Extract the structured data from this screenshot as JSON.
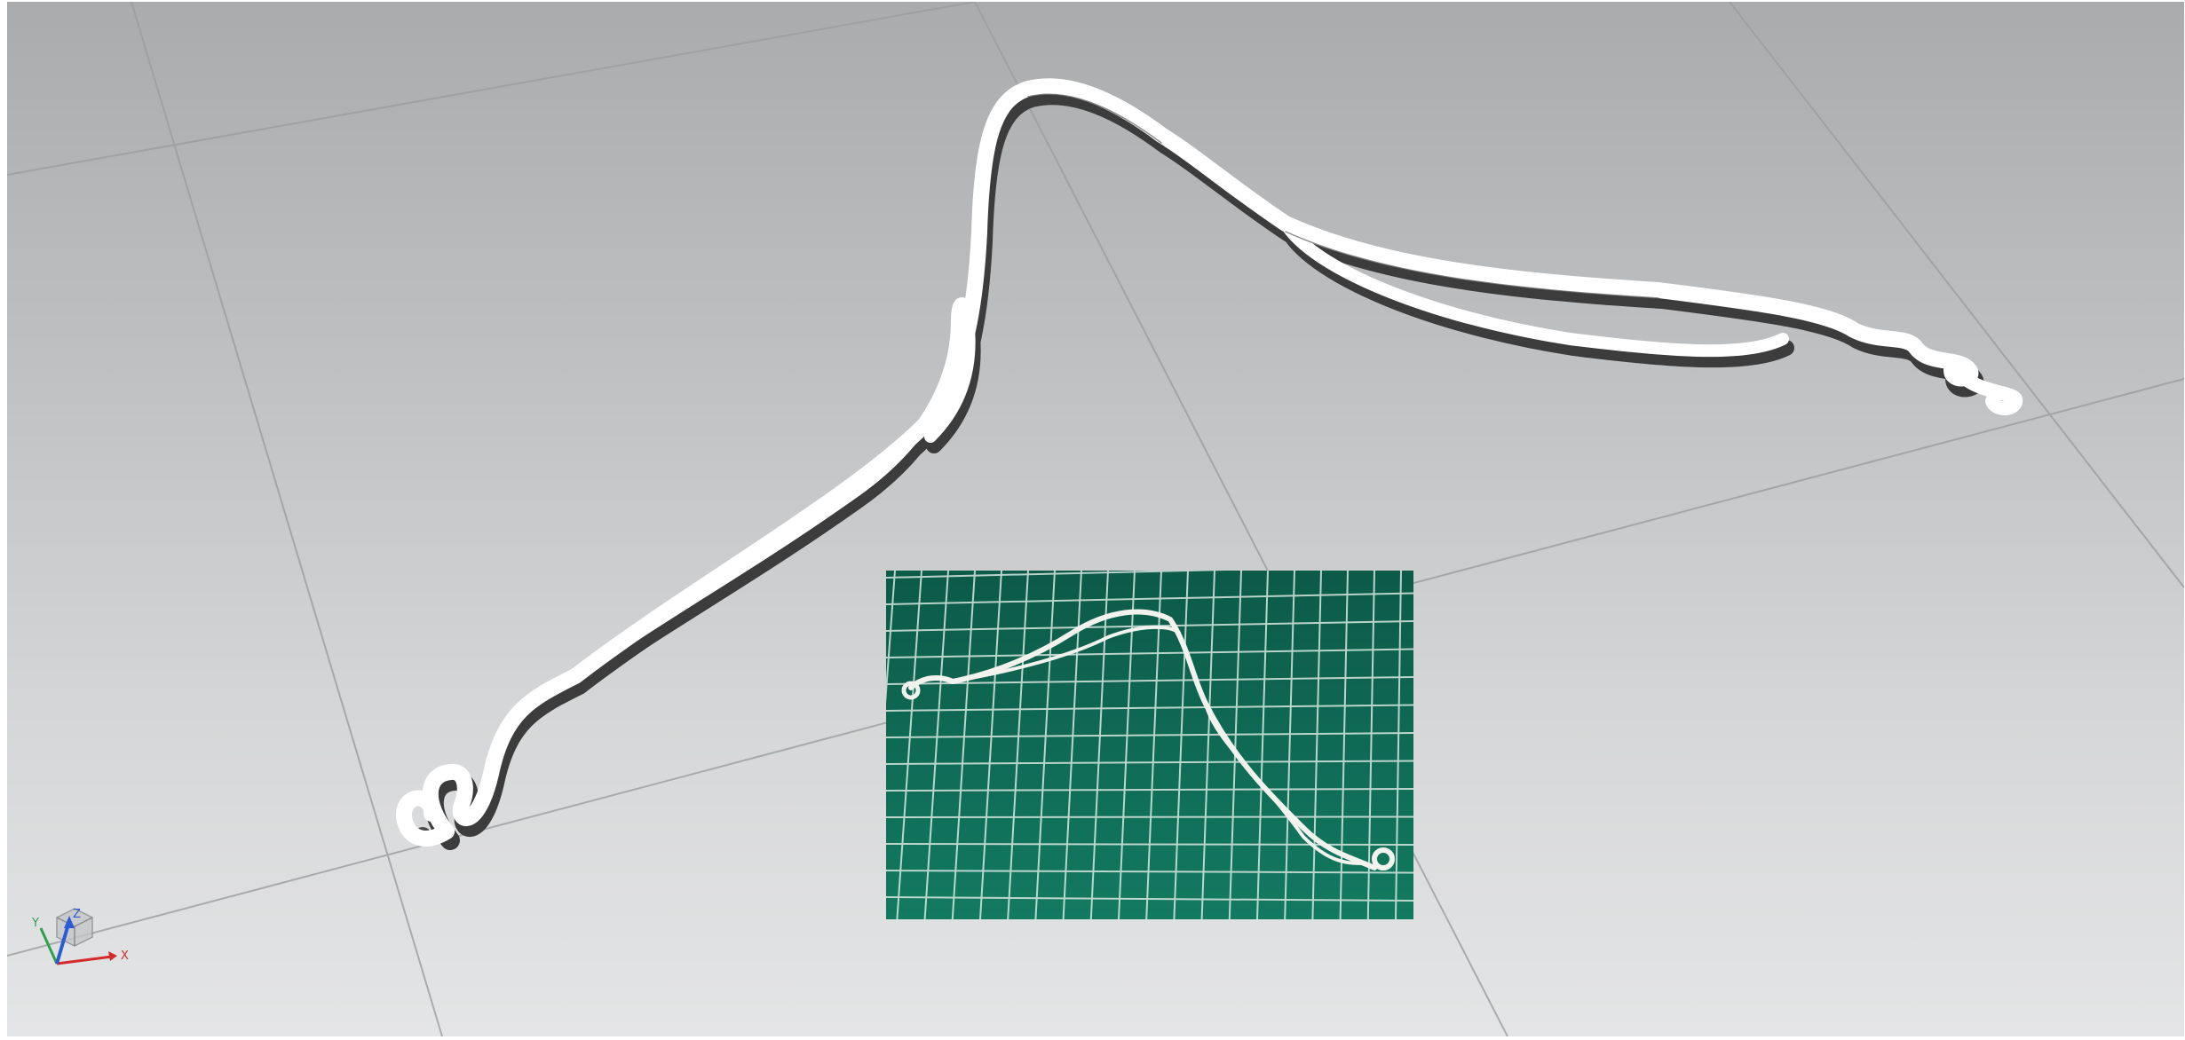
{
  "viewport": {
    "background_top": "#a9abad",
    "background_bottom": "#e4e5e6",
    "grid_color": "#9b9d9f"
  },
  "model": {
    "name": "hanger-part-icon",
    "fill": "#ffffff",
    "side_color": "#4a4a4a"
  },
  "photo_inset": {
    "mat_color": "#0f6a55",
    "grid_color": "#d8e8e2",
    "part_color": "#f2f2ee"
  },
  "axis_triad": {
    "x_label": "X",
    "y_label": "Y",
    "z_label": "Z",
    "x_color": "#d42a2a",
    "y_color": "#2aa24a",
    "z_color": "#2a5ad4"
  }
}
